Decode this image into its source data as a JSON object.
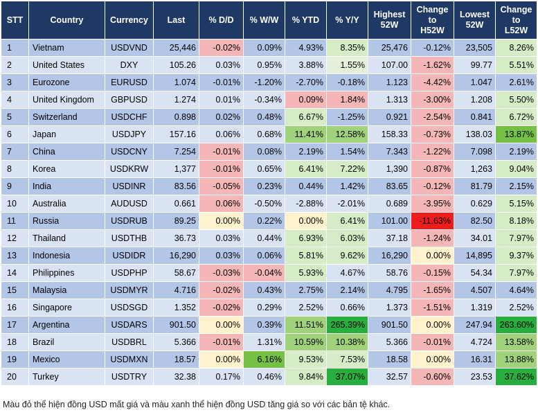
{
  "chart_data": {
    "type": "table",
    "headers": [
      "STT",
      "Country",
      "Currency",
      "Last",
      "% D/D",
      "% W/W",
      "% YTD",
      "% Y/Y",
      "Highest\n52W",
      "Change\nto\nH52W",
      "Lowest\n52W",
      "Change\nto\nL52W"
    ],
    "rows": [
      [
        "1",
        "Vietnam",
        "USDVND",
        "25,446",
        "-0.02%",
        "0.09%",
        "4.93%",
        "8.35%",
        "25,476",
        "-0.12%",
        "23,505",
        "8.26%"
      ],
      [
        "2",
        "United States",
        "DXY",
        "105.26",
        "0.03%",
        "0.95%",
        "3.88%",
        "1.55%",
        "107.00",
        "-1.62%",
        "99.77",
        "5.51%"
      ],
      [
        "3",
        "Eurozone",
        "EURUSD",
        "1.074",
        "-0.01%",
        "-1.20%",
        "-2.70%",
        "-0.18%",
        "1.123",
        "-4.42%",
        "1.047",
        "2.61%"
      ],
      [
        "4",
        "United Kingdom",
        "GBPUSD",
        "1.274",
        "0.01%",
        "-0.34%",
        "0.09%",
        "1.84%",
        "1.313",
        "-3.00%",
        "1.208",
        "5.50%"
      ],
      [
        "5",
        "Switzerland",
        "USDCHF",
        "0.898",
        "0.02%",
        "0.48%",
        "6.67%",
        "-1.25%",
        "0.921",
        "-2.54%",
        "0.841",
        "6.72%"
      ],
      [
        "6",
        "Japan",
        "USDJPY",
        "157.16",
        "0.06%",
        "0.68%",
        "11.41%",
        "12.58%",
        "158.33",
        "-0.73%",
        "138.03",
        "13.87%"
      ],
      [
        "7",
        "China",
        "USDCNY",
        "7.254",
        "-0.01%",
        "0.08%",
        "2.19%",
        "1.54%",
        "7.343",
        "-1.22%",
        "7.098",
        "2.19%"
      ],
      [
        "8",
        "Korea",
        "USDKRW",
        "1,377",
        "-0.01%",
        "0.65%",
        "6.41%",
        "7.22%",
        "1,390",
        "-0.87%",
        "1,263",
        "9.04%"
      ],
      [
        "9",
        "India",
        "USDINR",
        "83.56",
        "-0.05%",
        "0.23%",
        "0.44%",
        "1.42%",
        "83.65",
        "-0.12%",
        "81.79",
        "2.15%"
      ],
      [
        "10",
        "Australia",
        "AUDUSD",
        "0.661",
        "0.06%",
        "-0.50%",
        "-2.88%",
        "-2.01%",
        "0.689",
        "-3.95%",
        "0.629",
        "5.15%"
      ],
      [
        "11",
        "Russia",
        "USDRUB",
        "89.25",
        "0.00%",
        "0.22%",
        "0.00%",
        "6.41%",
        "101.00",
        "-11.63%",
        "82.50",
        "8.18%"
      ],
      [
        "12",
        "Thailand",
        "USDTHB",
        "36.73",
        "0.03%",
        "0.44%",
        "6.93%",
        "6.03%",
        "37.18",
        "-1.24%",
        "34.01",
        "7.97%"
      ],
      [
        "13",
        "Indonesia",
        "USDIDR",
        "16,290",
        "0.03%",
        "0.06%",
        "5.81%",
        "9.62%",
        "16,290",
        "0.00%",
        "14,895",
        "9.37%"
      ],
      [
        "14",
        "Philippines",
        "USDPHP",
        "58.67",
        "-0.03%",
        "-0.04%",
        "5.93%",
        "4.67%",
        "58.76",
        "-0.15%",
        "54.34",
        "7.97%"
      ],
      [
        "15",
        "Malaysia",
        "USDMYR",
        "4.716",
        "-0.02%",
        "0.43%",
        "2.75%",
        "2.14%",
        "4.795",
        "-1.65%",
        "4.507",
        "4.64%"
      ],
      [
        "16",
        "Singapore",
        "USDSGD",
        "1.352",
        "-0.02%",
        "0.29%",
        "2.52%",
        "0.66%",
        "1.373",
        "-1.51%",
        "1.319",
        "2.52%"
      ],
      [
        "17",
        "Argentina",
        "USDARS",
        "901.50",
        "0.00%",
        "0.39%",
        "11.51%",
        "265.39%",
        "901.50",
        "0.00%",
        "247.94",
        "263.60%"
      ],
      [
        "18",
        "Brazil",
        "USDBRL",
        "5.366",
        "-0.01%",
        "1.31%",
        "10.59%",
        "10.38%",
        "5.366",
        "-0.01%",
        "4.724",
        "13.58%"
      ],
      [
        "19",
        "Mexico",
        "USDMXN",
        "18.57",
        "0.00%",
        "6.16%",
        "9.53%",
        "7.53%",
        "18.58",
        "0.00%",
        "16.31",
        "13.88%"
      ],
      [
        "20",
        "Turkey",
        "USDTRY",
        "32.38",
        "0.17%",
        "0.46%",
        "9.84%",
        "37.07%",
        "32.57",
        "-0.60%",
        "23.53",
        "37.62%"
      ]
    ],
    "cell_colors": {
      "1": {
        "4": "#f4b6b6",
        "7": "#d6ecc7",
        "11": "#d6ecc7"
      },
      "2": {
        "7": "#e6f1db",
        "9": "#f4b6b6",
        "11": "#d6ecc7"
      },
      "3": {
        "9": "#f4b6b6"
      },
      "4": {
        "6": "#f4b6b6",
        "7": "#f4b6b6",
        "9": "#f4b6b6",
        "11": "#d6ecc7"
      },
      "5": {
        "6": "#d6ecc7",
        "9": "#f4b6b6",
        "11": "#d6ecc7"
      },
      "6": {
        "6": "#9fd27a",
        "7": "#9fd27a",
        "9": "#f4b6b6",
        "11": "#75c146"
      },
      "7": {
        "4": "#f4b6b6",
        "9": "#f4b6b6"
      },
      "8": {
        "4": "#f4b6b6",
        "6": "#d6ecc7",
        "7": "#d6ecc7",
        "9": "#f4b6b6",
        "11": "#d6ecc7"
      },
      "9": {
        "4": "#f4b6b6",
        "9": "#f4b6b6"
      },
      "10": {
        "4": "#f4b6b6",
        "9": "#f4b6b6",
        "11": "#d6ecc7"
      },
      "11": {
        "4": "#fff2cc",
        "6": "#fff2cc",
        "7": "#d6ecc7",
        "9": "#ee1c1c",
        "11": "#d6ecc7"
      },
      "12": {
        "6": "#d6ecc7",
        "7": "#d6ecc7",
        "9": "#f4b6b6",
        "11": "#d6ecc7"
      },
      "13": {
        "6": "#d6ecc7",
        "7": "#d6ecc7",
        "9": "#fff2cc",
        "11": "#d6ecc7"
      },
      "14": {
        "4": "#f4b6b6",
        "5": "#f4b6b6",
        "6": "#d6ecc7",
        "9": "#f4b6b6",
        "11": "#d6ecc7"
      },
      "15": {
        "4": "#f4b6b6",
        "9": "#f4b6b6"
      },
      "16": {
        "4": "#f4b6b6",
        "9": "#f4b6b6"
      },
      "17": {
        "4": "#fff2cc",
        "6": "#9fd27a",
        "7": "#27ae3e",
        "9": "#fff2cc",
        "11": "#27ae3e"
      },
      "18": {
        "4": "#f4b6b6",
        "6": "#9fd27a",
        "7": "#9fd27a",
        "9": "#f4b6b6",
        "11": "#9fd27a"
      },
      "19": {
        "4": "#fff2cc",
        "5": "#75c146",
        "6": "#d6ecc7",
        "7": "#d6ecc7",
        "9": "#fff2cc",
        "11": "#9fd27a"
      },
      "20": {
        "6": "#d6ecc7",
        "7": "#27ae3e",
        "9": "#f4b6b6",
        "11": "#27ae3e"
      }
    },
    "footnote": "Màu đỏ thể hiện đồng USD mất giá và màu xanh thể hiện đồng USD tăng giá so với các bản tệ khác."
  }
}
